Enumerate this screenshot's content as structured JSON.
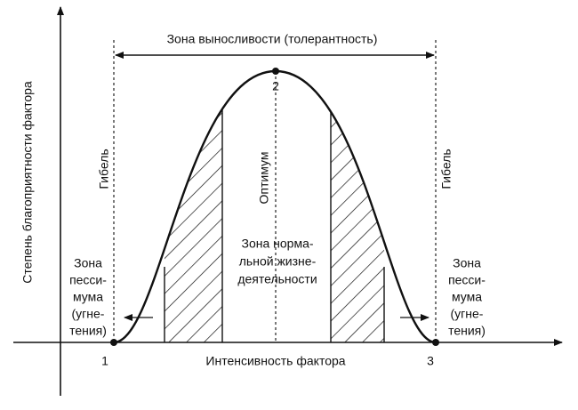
{
  "header": {
    "title": "Зона выносливости (толерантность)"
  },
  "axes": {
    "y_label": "Степень благоприятности фактора",
    "x_label": "Интенсивность фактора"
  },
  "points": [
    "1",
    "2",
    "3"
  ],
  "labels": {
    "death_left": "Гибель",
    "death_right": "Гибель",
    "optimum": "Оптимум",
    "normal_zone": [
      "Зона норма-",
      "льной жизне-",
      "деятельности"
    ],
    "pessimum_left": [
      "Зона",
      "песси-",
      "мума",
      "(угне-",
      "тения)"
    ],
    "pessimum_right": [
      "Зона",
      "песси-",
      "мума",
      "(угне-",
      "тения)"
    ]
  }
}
